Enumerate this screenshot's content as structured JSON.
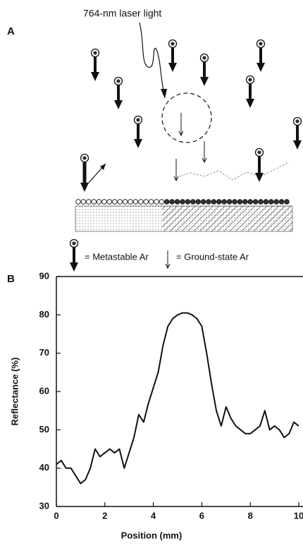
{
  "panel_a": {
    "label": "A",
    "laser_label": "764-nm laser light",
    "legend": {
      "metastable": "= Metastable Ar",
      "ground_state": "= Ground-state Ar"
    }
  },
  "chart_data": {
    "type": "line",
    "panel_label": "B",
    "x_label": "Position (mm)",
    "y_label": "Reflectance (%)",
    "x": [
      0,
      0.2,
      0.4,
      0.6,
      0.8,
      1.0,
      1.2,
      1.4,
      1.6,
      1.8,
      2.0,
      2.2,
      2.4,
      2.6,
      2.8,
      3.0,
      3.2,
      3.4,
      3.6,
      3.8,
      4.0,
      4.2,
      4.4,
      4.6,
      4.8,
      5.0,
      5.2,
      5.4,
      5.6,
      5.8,
      6.0,
      6.2,
      6.4,
      6.6,
      6.8,
      7.0,
      7.2,
      7.4,
      7.6,
      7.8,
      8.0,
      8.2,
      8.4,
      8.6,
      8.8,
      9.0,
      9.2,
      9.4,
      9.6,
      9.8,
      10.0
    ],
    "series": [
      {
        "color": "#111111",
        "values": [
          41,
          42,
          40,
          40,
          38,
          36,
          37,
          40,
          45,
          43,
          44,
          45,
          44,
          45,
          40,
          44,
          48,
          54,
          52,
          57,
          61,
          65,
          72,
          77,
          79,
          80,
          80.5,
          80.5,
          80,
          79,
          77,
          70,
          62,
          55,
          51,
          56,
          53,
          51,
          50,
          49,
          49,
          50,
          51,
          55,
          50,
          51,
          50,
          48,
          49,
          52,
          51
        ]
      }
    ],
    "xlim": [
      0,
      10
    ],
    "xticks": [
      0,
      2,
      4,
      6,
      8,
      10
    ],
    "ylim": [
      30,
      90
    ],
    "yticks": [
      30,
      40,
      50,
      60,
      70,
      80,
      90
    ]
  }
}
